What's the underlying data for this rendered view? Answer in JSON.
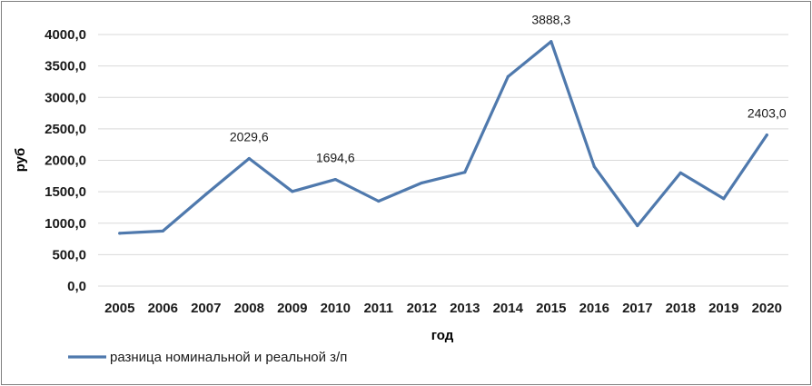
{
  "chart_data": {
    "type": "line",
    "x": [
      "2005",
      "2006",
      "2007",
      "2008",
      "2009",
      "2010",
      "2011",
      "2012",
      "2013",
      "2014",
      "2015",
      "2016",
      "2017",
      "2018",
      "2019",
      "2020"
    ],
    "series": [
      {
        "name": "разница номинальной и реальной з/п",
        "values": [
          840,
          875,
          1460,
          2029.6,
          1505,
          1694.6,
          1350,
          1640,
          1810,
          3330,
          3888.3,
          1900,
          960,
          1800,
          1390,
          2403.0
        ],
        "color": "#4f79ad"
      }
    ],
    "data_labels": [
      {
        "index": 3,
        "text": "2029,6"
      },
      {
        "index": 5,
        "text": "1694,6"
      },
      {
        "index": 10,
        "text": "3888,3"
      },
      {
        "index": 15,
        "text": "2403,0"
      }
    ],
    "xlabel": "год",
    "ylabel": "руб",
    "ylim": [
      0,
      4000
    ],
    "yticks": [
      0,
      500,
      1000,
      1500,
      2000,
      2500,
      3000,
      3500,
      4000
    ],
    "ytick_labels": [
      "0,0",
      "500,0",
      "1000,0",
      "1500,0",
      "2000,0",
      "2500,0",
      "3000,0",
      "3500,0",
      "4000,0"
    ],
    "grid": "horizontal",
    "legend_position": "bottom-left"
  }
}
